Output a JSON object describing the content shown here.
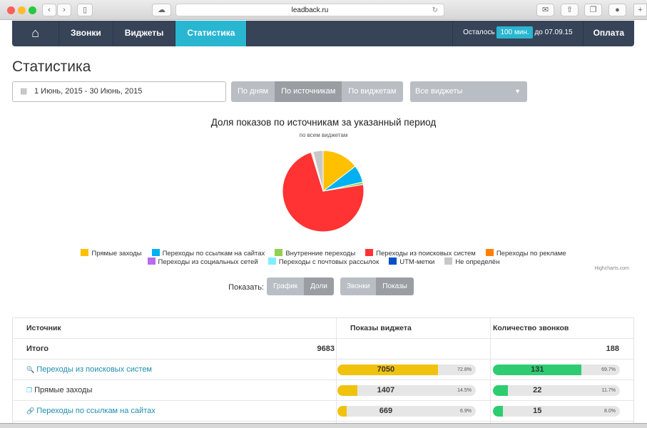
{
  "browser": {
    "url": "leadback.ru"
  },
  "nav": {
    "home_icon": "home-icon",
    "items": [
      "Звонки",
      "Виджеты",
      "Статистика"
    ],
    "active": "Статистика",
    "remaining_label": "Осталось",
    "remaining_value": "100 мин.",
    "until": "до 07.09.15",
    "pay": "Оплата"
  },
  "page_title": "Статистика",
  "filters": {
    "date_range": "1 Июнь, 2015 - 30 Июнь, 2015",
    "group_tabs": [
      "По дням",
      "По источникам",
      "По виджетам"
    ],
    "active_group": "По источникам",
    "widget_select": "Все виджеты"
  },
  "chart_data": {
    "type": "pie",
    "title": "Доля показов по источникам за указанный период",
    "subtitle": "по всем виджетам",
    "credit": "Highcharts.com",
    "legend_position": "bottom",
    "series": [
      {
        "name": "Прямые заходы",
        "value": 14.5,
        "color": "#ffc000"
      },
      {
        "name": "Переходы по ссылкам на сайтах",
        "value": 6.9,
        "color": "#00b0f0"
      },
      {
        "name": "Внутренние переходы",
        "value": 1.0,
        "color": "#92d050"
      },
      {
        "name": "Переходы из поисковых систем",
        "value": 72.8,
        "color": "#ff3333"
      },
      {
        "name": "Переходы по рекламе",
        "value": 0.4,
        "color": "#ff7f00"
      },
      {
        "name": "Переходы из социальных сетей",
        "value": 0.2,
        "color": "#b86bf0"
      },
      {
        "name": "Переходы с почтовых рассылок",
        "value": 0.1,
        "color": "#80eeff"
      },
      {
        "name": "UTM-метки",
        "value": 0.1,
        "color": "#0050c8"
      },
      {
        "name": "Не определён",
        "value": 4.0,
        "color": "#c8c8c8"
      }
    ]
  },
  "show": {
    "label": "Показать:",
    "view": [
      "График",
      "Доли"
    ],
    "active_view": "Доли",
    "metric": [
      "Звонки",
      "Показы"
    ],
    "active_metric": "Показы"
  },
  "table": {
    "headers": [
      "Источник",
      "Показы виджета",
      "Количество звонков"
    ],
    "total": {
      "label": "Итого",
      "shows": "9683",
      "calls": "188"
    },
    "rows": [
      {
        "icon": "search-icon",
        "name": "Переходы из поисковых систем",
        "shows": "7050",
        "shows_pct": "72.8%",
        "shows_frac": 0.728,
        "calls": "131",
        "calls_pct": "69.7%",
        "calls_frac": 0.697
      },
      {
        "icon": "direct-icon",
        "name": "Прямые заходы",
        "shows": "1407",
        "shows_pct": "14.5%",
        "shows_frac": 0.145,
        "calls": "22",
        "calls_pct": "11.7%",
        "calls_frac": 0.117
      },
      {
        "icon": "link-icon",
        "name": "Переходы по ссылкам на сайтах",
        "shows": "669",
        "shows_pct": "6.9%",
        "shows_frac": 0.069,
        "calls": "15",
        "calls_pct": "8.0%",
        "calls_frac": 0.08
      }
    ]
  }
}
